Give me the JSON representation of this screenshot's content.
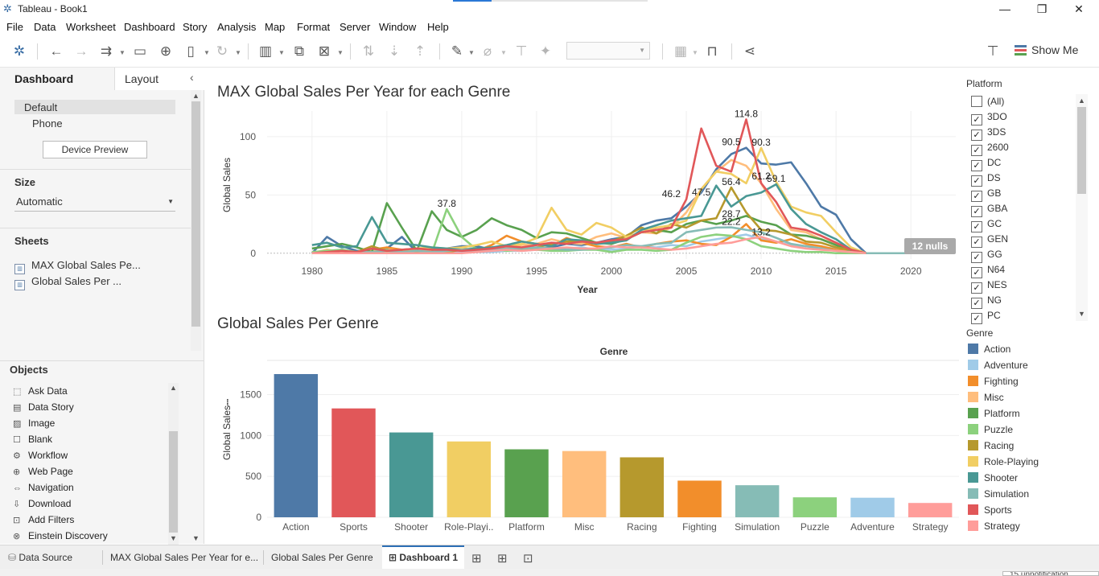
{
  "window": {
    "title": "Tableau - Book1",
    "minimize_glyph": "—",
    "restore_glyph": "❐",
    "close_glyph": "✕"
  },
  "menu": [
    "File",
    "Data",
    "Worksheet",
    "Dashboard",
    "Story",
    "Analysis",
    "Map",
    "Format",
    "Server",
    "Window",
    "Help"
  ],
  "toolbar": {
    "icons": [
      "tableau-logo-icon",
      "undo-icon",
      "redo-icon",
      "replay-icon",
      "save-icon",
      "new-data-source-icon",
      "pause-updates-icon",
      "refresh-icon",
      "new-worksheet-icon",
      "duplicate-sheet-icon",
      "clear-sheet-icon",
      "swap-icon",
      "sort-ascending-icon",
      "sort-descending-icon",
      "highlight-icon",
      "group-icon",
      "label-icon",
      "pin-icon",
      "fit-icon",
      "presentation-icon",
      "share-icon",
      "format-painter-icon"
    ],
    "show_me_label": "Show Me"
  },
  "left_panel": {
    "tabs": [
      "Dashboard",
      "Layout"
    ],
    "device_default": "Default",
    "device_phone": "Phone",
    "device_preview_label": "Device Preview",
    "size_title": "Size",
    "size_value": "Automatic",
    "sheets_title": "Sheets",
    "sheets": [
      "MAX Global Sales Pe...",
      "Global Sales Per ..."
    ],
    "objects_title": "Objects",
    "objects": [
      {
        "label": "Ask Data",
        "icon": "ask-data-icon",
        "glyph": "⬚"
      },
      {
        "label": "Data Story",
        "icon": "data-story-icon",
        "glyph": "▤"
      },
      {
        "label": "Image",
        "icon": "image-icon",
        "glyph": "▨"
      },
      {
        "label": "Blank",
        "icon": "blank-icon",
        "glyph": "☐"
      },
      {
        "label": "Workflow",
        "icon": "workflow-icon",
        "glyph": "⚙"
      },
      {
        "label": "Web Page",
        "icon": "web-page-icon",
        "glyph": "⊕"
      },
      {
        "label": "Navigation",
        "icon": "navigation-icon",
        "glyph": "⇔"
      },
      {
        "label": "Download",
        "icon": "download-icon",
        "glyph": "⇩"
      },
      {
        "label": "Add Filters",
        "icon": "add-filters-icon",
        "glyph": "⊡"
      },
      {
        "label": "Einstein Discovery",
        "icon": "einstein-discovery-icon",
        "glyph": "⊗"
      }
    ]
  },
  "dashboard": {
    "line_title": "MAX Global Sales Per Year for each Genre",
    "bar_title": "Global Sales Per Genre"
  },
  "filter": {
    "title": "Platform",
    "items": [
      {
        "label": "(All)",
        "checked": false
      },
      {
        "label": "3DO",
        "checked": true
      },
      {
        "label": "3DS",
        "checked": true
      },
      {
        "label": "2600",
        "checked": true
      },
      {
        "label": "DC",
        "checked": true
      },
      {
        "label": "DS",
        "checked": true
      },
      {
        "label": "GB",
        "checked": true
      },
      {
        "label": "GBA",
        "checked": true
      },
      {
        "label": "GC",
        "checked": true
      },
      {
        "label": "GEN",
        "checked": true
      },
      {
        "label": "GG",
        "checked": true
      },
      {
        "label": "N64",
        "checked": true
      },
      {
        "label": "NES",
        "checked": true
      },
      {
        "label": "NG",
        "checked": true
      },
      {
        "label": "PC",
        "checked": true
      }
    ],
    "check_glyph": "✓"
  },
  "legend": {
    "title": "Genre",
    "items": [
      {
        "label": "Action",
        "color": "#4e79a7"
      },
      {
        "label": "Adventure",
        "color": "#a0cbe8"
      },
      {
        "label": "Fighting",
        "color": "#f28e2b"
      },
      {
        "label": "Misc",
        "color": "#ffbe7d"
      },
      {
        "label": "Platform",
        "color": "#59a14f"
      },
      {
        "label": "Puzzle",
        "color": "#8cd17d"
      },
      {
        "label": "Racing",
        "color": "#b6992d"
      },
      {
        "label": "Role-Playing",
        "color": "#f1ce63"
      },
      {
        "label": "Shooter",
        "color": "#499894"
      },
      {
        "label": "Simulation",
        "color": "#86bcb6"
      },
      {
        "label": "Sports",
        "color": "#e15759"
      },
      {
        "label": "Strategy",
        "color": "#ff9d9a"
      }
    ]
  },
  "bottom_tabs": {
    "data_source": "Data Source",
    "tabs": [
      "MAX Global Sales Per Year for e...",
      "Global Sales Per Genre",
      "Dashboard 1"
    ],
    "status_text": "15 unnotification"
  },
  "chart_data": [
    {
      "type": "line",
      "title": "MAX Global Sales Per Year for each Genre",
      "xlabel": "Year",
      "ylabel": "Global Sales",
      "xlim": [
        1977,
        2023
      ],
      "ylim": [
        -5,
        122
      ],
      "x_ticks": [
        1980,
        1985,
        1990,
        1995,
        2000,
        2005,
        2010,
        2015,
        2020
      ],
      "y_ticks": [
        0,
        50,
        100
      ],
      "nulls_badge": "12 nulls",
      "null_line": {
        "x": [
          2017,
          2020
        ],
        "y": [
          0,
          0
        ]
      },
      "annotations": [
        {
          "x": 2009,
          "y": 114.8,
          "label": "114.8"
        },
        {
          "x": 2008,
          "y": 90.5,
          "label": "90.5"
        },
        {
          "x": 2010,
          "y": 90.3,
          "label": "90.3"
        },
        {
          "x": 2010,
          "y": 61.2,
          "label": "61.2"
        },
        {
          "x": 2011,
          "y": 59.1,
          "label": "59.1"
        },
        {
          "x": 2008,
          "y": 56.4,
          "label": "56.4"
        },
        {
          "x": 2006,
          "y": 47.5,
          "label": "47.5"
        },
        {
          "x": 2004,
          "y": 46.2,
          "label": "46.2"
        },
        {
          "x": 1989,
          "y": 37.8,
          "label": "37.8"
        },
        {
          "x": 2008,
          "y": 28.7,
          "label": "28.7"
        },
        {
          "x": 2008,
          "y": 22.2,
          "label": "22.2"
        },
        {
          "x": 2010,
          "y": 13.2,
          "label": "13.2"
        }
      ],
      "x": [
        1980,
        1981,
        1982,
        1983,
        1984,
        1985,
        1986,
        1987,
        1988,
        1989,
        1990,
        1991,
        1992,
        1993,
        1994,
        1995,
        1996,
        1997,
        1998,
        1999,
        2000,
        2001,
        2002,
        2003,
        2004,
        2005,
        2006,
        2007,
        2008,
        2009,
        2010,
        2011,
        2012,
        2013,
        2014,
        2015,
        2016,
        2017
      ],
      "series": [
        {
          "name": "Action",
          "values": [
            0,
            14,
            6,
            2,
            1,
            4,
            14,
            1,
            1,
            4,
            6,
            6,
            3,
            2,
            3,
            4,
            5,
            8,
            7,
            9,
            12,
            14,
            24,
            28,
            30,
            40,
            52,
            72,
            85,
            90.5,
            77,
            76,
            78,
            60,
            40,
            33,
            12,
            0
          ]
        },
        {
          "name": "Adventure",
          "values": [
            0,
            0,
            0,
            1,
            0,
            0,
            2,
            1,
            1,
            0,
            1,
            1,
            1,
            2,
            2,
            3,
            3,
            4,
            5,
            3,
            3,
            4,
            6,
            5,
            7,
            6,
            10,
            12,
            14,
            16,
            12,
            10,
            7,
            6,
            5,
            4,
            2,
            0
          ]
        },
        {
          "name": "Fighting",
          "values": [
            1,
            0,
            0,
            1,
            3,
            5,
            3,
            4,
            4,
            2,
            3,
            2,
            7,
            15,
            10,
            8,
            6,
            13,
            9,
            6,
            5,
            8,
            5,
            8,
            10,
            11,
            8,
            7,
            14,
            25,
            11,
            9,
            12,
            8,
            6,
            3,
            2,
            0
          ]
        },
        {
          "name": "Misc",
          "values": [
            0,
            3,
            1,
            1,
            2,
            3,
            2,
            3,
            2,
            4,
            4,
            3,
            4,
            4,
            7,
            8,
            12,
            9,
            8,
            14,
            17,
            13,
            18,
            17,
            22,
            35,
            55,
            70,
            80,
            75,
            60,
            38,
            20,
            18,
            12,
            8,
            3,
            0
          ]
        },
        {
          "name": "Platform",
          "values": [
            4,
            6,
            8,
            5,
            1,
            43,
            22,
            2,
            36,
            20,
            14,
            20,
            30,
            24,
            20,
            13,
            18,
            17,
            13,
            9,
            8,
            12,
            18,
            20,
            18,
            25,
            28,
            25,
            28,
            32,
            27,
            24,
            16,
            15,
            12,
            7,
            2,
            0
          ]
        },
        {
          "name": "Puzzle",
          "values": [
            1,
            2,
            3,
            1,
            1,
            3,
            0,
            1,
            0,
            37.8,
            14,
            3,
            4,
            2,
            3,
            3,
            2,
            2,
            3,
            3,
            1,
            3,
            3,
            2,
            3,
            9,
            14,
            16,
            15,
            12,
            6,
            4,
            2,
            1,
            1,
            0,
            0,
            0
          ]
        },
        {
          "name": "Racing",
          "values": [
            0,
            0,
            0,
            1,
            6,
            2,
            2,
            1,
            1,
            1,
            3,
            4,
            4,
            3,
            4,
            5,
            8,
            10,
            11,
            8,
            10,
            15,
            22,
            17,
            25,
            22,
            28,
            30,
            56.4,
            35,
            20,
            19,
            16,
            10,
            9,
            5,
            3,
            0
          ]
        },
        {
          "name": "Role-Playing",
          "values": [
            0,
            0,
            0,
            0,
            0,
            1,
            1,
            4,
            5,
            4,
            5,
            7,
            10,
            6,
            8,
            13,
            39,
            20,
            16,
            26,
            22,
            14,
            18,
            22,
            24,
            28,
            55,
            70,
            68,
            60,
            90.3,
            61.2,
            40,
            35,
            32,
            18,
            5,
            0
          ]
        },
        {
          "name": "Shooter",
          "values": [
            7,
            9,
            5,
            6,
            31,
            9,
            8,
            7,
            5,
            4,
            3,
            4,
            5,
            7,
            10,
            8,
            6,
            12,
            11,
            8,
            9,
            11,
            20,
            24,
            28,
            30,
            32,
            58,
            40,
            49,
            52,
            59.1,
            38,
            25,
            18,
            12,
            3,
            0
          ]
        },
        {
          "name": "Simulation",
          "values": [
            0,
            1,
            0,
            1,
            1,
            2,
            1,
            2,
            1,
            2,
            3,
            2,
            3,
            4,
            4,
            5,
            4,
            3,
            3,
            4,
            5,
            7,
            6,
            8,
            9,
            18,
            20,
            22,
            22.2,
            20,
            18,
            13.2,
            8,
            6,
            4,
            2,
            1,
            0
          ]
        },
        {
          "name": "Sports",
          "values": [
            0,
            1,
            2,
            1,
            4,
            2,
            3,
            4,
            3,
            3,
            2,
            3,
            4,
            6,
            5,
            7,
            9,
            8,
            10,
            9,
            11,
            12,
            18,
            20,
            22,
            46.2,
            107,
            75,
            70,
            114.8,
            60,
            44,
            22,
            20,
            15,
            9,
            3,
            0
          ]
        },
        {
          "name": "Strategy",
          "values": [
            0,
            0,
            0,
            0,
            0,
            0,
            0,
            0,
            0,
            0,
            0,
            1,
            2,
            3,
            2,
            3,
            4,
            5,
            4,
            4,
            6,
            5,
            5,
            4,
            3,
            4,
            6,
            8,
            9,
            12,
            14,
            10,
            6,
            4,
            3,
            2,
            1,
            0
          ]
        }
      ]
    },
    {
      "type": "bar",
      "title": "Global Sales Per Genre",
      "header": "Genre",
      "ylabel": "Global Sales",
      "ylim": [
        0,
        1800
      ],
      "y_ticks": [
        0,
        500,
        1000,
        1500
      ],
      "categories": [
        "Action",
        "Sports",
        "Shooter",
        "Role-Playi..",
        "Platform",
        "Misc",
        "Racing",
        "Fighting",
        "Simulation",
        "Puzzle",
        "Adventure",
        "Strategy"
      ],
      "values": [
        1751,
        1331,
        1037,
        927,
        831,
        810,
        733,
        448,
        392,
        244,
        239,
        175
      ],
      "colors": [
        "#4e79a7",
        "#e15759",
        "#499894",
        "#f1ce63",
        "#59a14f",
        "#ffbe7d",
        "#b6992d",
        "#f28e2b",
        "#86bcb6",
        "#8cd17d",
        "#a0cbe8",
        "#ff9d9a"
      ]
    }
  ]
}
